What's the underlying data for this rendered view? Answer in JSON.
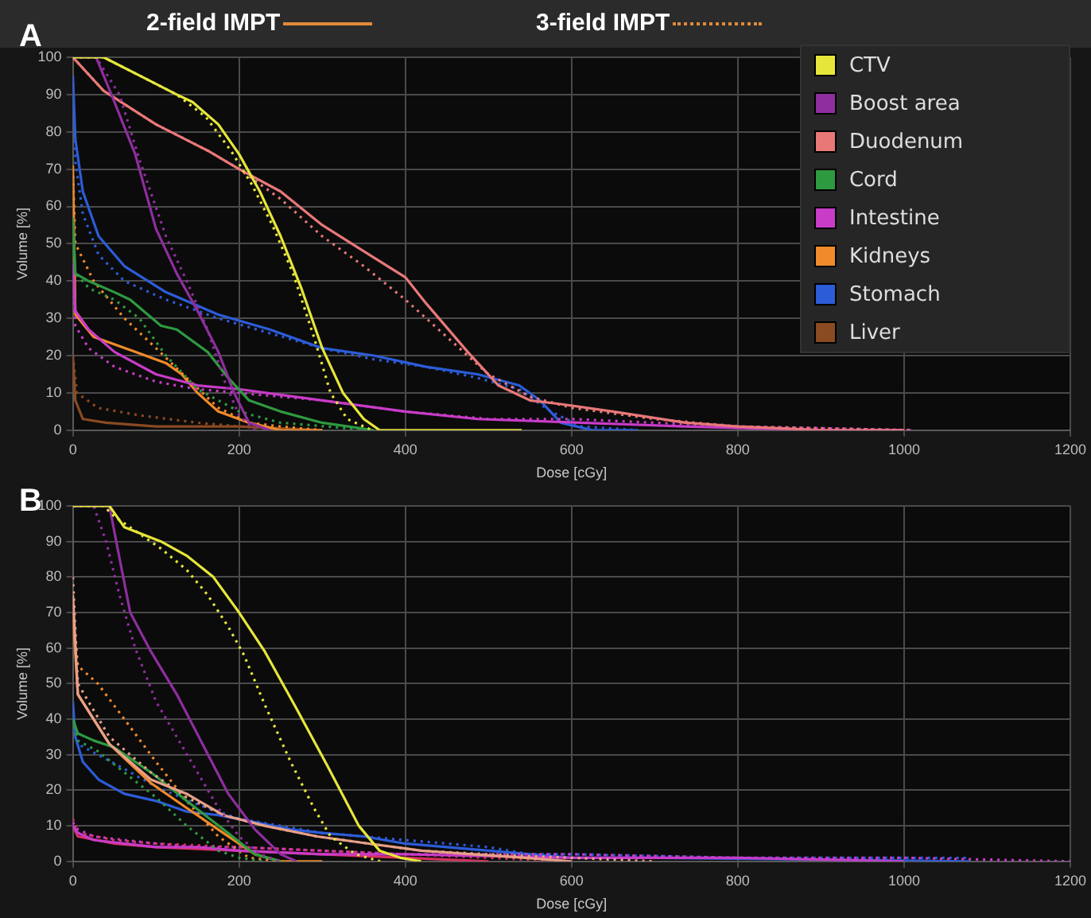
{
  "chart_data": [
    {
      "type": "line",
      "xlabel": "Dose [cGy]",
      "ylabel": "Volume [%]",
      "xlim": [
        0,
        1200
      ],
      "xticks": [
        0,
        200,
        400,
        600,
        800,
        1000,
        1200
      ],
      "ylim": [
        0,
        100
      ],
      "yticks": [
        0,
        10,
        20,
        30,
        40,
        50,
        60,
        70,
        80,
        90,
        100
      ],
      "grid": true,
      "legend": "top right",
      "annotations": [
        "A",
        "2-field IMPT",
        "3-field IMPT"
      ],
      "series": [
        {
          "name": "CTV",
          "color": "#e6e63a",
          "line_style": "solid",
          "x": [
            0,
            37,
            81,
            125,
            144,
            175,
            200,
            225,
            250,
            275,
            300,
            325,
            350,
            369,
            540
          ],
          "values": [
            100,
            100,
            95,
            90,
            88,
            82,
            74,
            64,
            52,
            38,
            22,
            10,
            3,
            0,
            0
          ]
        },
        {
          "color": "#e6e63a",
          "line_style": "dotted",
          "x": [
            0,
            37,
            81,
            125,
            160,
            190,
            215,
            240,
            265,
            290,
            310,
            330,
            360
          ],
          "values": [
            100,
            100,
            95,
            90,
            84,
            75,
            66,
            55,
            42,
            25,
            10,
            3,
            0
          ]
        },
        {
          "name": "Boost area",
          "color": "#8e2e9e",
          "line_style": "solid",
          "x": [
            0,
            28,
            50,
            75,
            100,
            125,
            150,
            175,
            194,
            212,
            237
          ],
          "values": [
            100,
            100,
            88,
            74,
            54,
            42,
            32,
            21,
            10,
            2,
            0
          ]
        },
        {
          "color": "#8e2e9e",
          "line_style": "dotted",
          "x": [
            0,
            28,
            56,
            81,
            112,
            137,
            162,
            181,
            200,
            219
          ],
          "values": [
            100,
            100,
            90,
            72,
            52,
            40,
            27,
            14,
            4,
            0
          ]
        },
        {
          "name": "Duodenum",
          "color": "#e87878",
          "line_style": "solid",
          "x": [
            0,
            37,
            100,
            162,
            200,
            250,
            300,
            350,
            400,
            425,
            475,
            512,
            550,
            587,
            650,
            737,
            800,
            900,
            1000
          ],
          "values": [
            100,
            91,
            82,
            75,
            70,
            64,
            55,
            48,
            41,
            34,
            21,
            12,
            8,
            7,
            5,
            2,
            1,
            0,
            0
          ]
        },
        {
          "color": "#e87878",
          "line_style": "dotted",
          "x": [
            0,
            37,
            100,
            162,
            200,
            250,
            300,
            350,
            400,
            450,
            500,
            550,
            600,
            700,
            800,
            1010
          ],
          "values": [
            100,
            91,
            82,
            75,
            70,
            62,
            52,
            44,
            35,
            25,
            15,
            9,
            6,
            3,
            1,
            0
          ]
        },
        {
          "name": "Cord",
          "color": "#2e9a40",
          "line_style": "solid",
          "x": [
            0,
            3,
            19,
            50,
            69,
            106,
            125,
            162,
            187,
            212,
            250,
            300,
            362
          ],
          "values": [
            57,
            42,
            40,
            37,
            35,
            28,
            27,
            21,
            14,
            8,
            5,
            2,
            0
          ]
        },
        {
          "color": "#2e9a40",
          "line_style": "dotted",
          "x": [
            0,
            3,
            20,
            50,
            80,
            112,
            150,
            200,
            250,
            360
          ],
          "values": [
            55,
            42,
            38,
            35,
            30,
            20,
            11,
            5,
            2,
            0
          ]
        },
        {
          "name": "Intestine",
          "color": "#c83cc8",
          "line_style": "solid",
          "x": [
            0,
            3,
            19,
            50,
            100,
            150,
            200,
            300,
            400,
            487,
            612,
            737,
            900,
            1000
          ],
          "values": [
            45,
            32,
            27,
            21,
            15,
            12,
            11,
            8,
            5,
            3,
            2,
            1,
            0,
            0
          ]
        },
        {
          "color": "#c83cc8",
          "line_style": "dotted",
          "x": [
            0,
            3,
            19,
            50,
            100,
            150,
            200,
            300,
            400,
            500,
            600,
            800,
            1010
          ],
          "values": [
            40,
            28,
            22,
            17,
            13,
            11,
            10,
            8,
            5,
            3,
            3,
            1,
            0
          ]
        },
        {
          "name": "Kidneys",
          "color": "#f08a2a",
          "line_style": "solid",
          "x": [
            0,
            3,
            25,
            75,
            112,
            131,
            150,
            175,
            212,
            250,
            300
          ],
          "values": [
            71,
            31,
            25,
            21,
            18,
            15,
            10,
            5,
            2,
            0,
            0
          ]
        },
        {
          "color": "#f08a2a",
          "line_style": "dotted",
          "x": [
            0,
            3,
            25,
            62,
            100,
            137,
            175,
            212,
            250,
            300
          ],
          "values": [
            70,
            50,
            40,
            30,
            22,
            14,
            6,
            2,
            1,
            0
          ]
        },
        {
          "name": "Stomach",
          "color": "#2c5cd8",
          "line_style": "solid",
          "x": [
            0,
            3,
            12,
            31,
            62,
            112,
            175,
            237,
            300,
            362,
            425,
            487,
            537,
            562,
            587,
            625,
            680
          ],
          "values": [
            95,
            78,
            64,
            52,
            44,
            37,
            31,
            27,
            22,
            20,
            17,
            15,
            12,
            8,
            2,
            0,
            0
          ]
        },
        {
          "color": "#2c5cd8",
          "line_style": "dotted",
          "x": [
            0,
            3,
            12,
            31,
            62,
            112,
            175,
            237,
            300,
            362,
            425,
            487,
            537,
            575,
            612,
            680
          ],
          "values": [
            95,
            72,
            58,
            47,
            40,
            35,
            30,
            26,
            22,
            19,
            17,
            14,
            11,
            5,
            1,
            0
          ]
        },
        {
          "name": "Liver",
          "color": "#8a4a22",
          "line_style": "solid",
          "x": [
            0,
            3,
            12,
            40,
            100,
            200,
            300
          ],
          "values": [
            20,
            8,
            3,
            2,
            1,
            1,
            0
          ]
        },
        {
          "color": "#8a4a22",
          "line_style": "dotted",
          "x": [
            0,
            5,
            30,
            80,
            150,
            200,
            260
          ],
          "values": [
            20,
            10,
            6,
            4,
            2,
            1,
            0
          ]
        }
      ]
    },
    {
      "type": "line",
      "xlabel": "Dose [cGy]",
      "ylabel": "Volume [%]",
      "xlim": [
        0,
        1200
      ],
      "xticks": [
        0,
        200,
        400,
        600,
        800,
        1000,
        1200
      ],
      "ylim": [
        0,
        100
      ],
      "yticks": [
        0,
        10,
        20,
        30,
        40,
        50,
        60,
        70,
        80,
        90,
        100
      ],
      "grid": true,
      "annotations": [
        "B"
      ],
      "series": [
        {
          "color": "#e6e63a",
          "line_style": "solid",
          "x": [
            0,
            44,
            62,
            106,
            137,
            169,
            200,
            231,
            269,
            306,
            344,
            369,
            394,
            419
          ],
          "values": [
            100,
            100,
            94,
            90,
            86,
            80,
            70,
            59,
            43,
            27,
            10,
            3,
            1,
            0
          ]
        },
        {
          "color": "#e6e63a",
          "line_style": "dotted",
          "x": [
            0,
            37,
            50,
            75,
            106,
            137,
            162,
            187,
            206,
            231,
            262,
            290,
            310,
            340,
            370
          ],
          "values": [
            100,
            100,
            97,
            93,
            88,
            82,
            75,
            66,
            58,
            44,
            28,
            15,
            7,
            2,
            0
          ]
        },
        {
          "color": "#8e2e9e",
          "line_style": "solid",
          "x": [
            0,
            44,
            53,
            69,
            94,
            125,
            156,
            187,
            219,
            250,
            269
          ],
          "values": [
            100,
            100,
            89,
            70,
            59,
            47,
            33,
            19,
            9,
            2,
            0
          ]
        },
        {
          "color": "#8e2e9e",
          "line_style": "dotted",
          "x": [
            0,
            25,
            40,
            56,
            75,
            100,
            125,
            150,
            175,
            200,
            225,
            250
          ],
          "values": [
            100,
            100,
            90,
            75,
            60,
            45,
            35,
            25,
            15,
            7,
            2,
            0
          ]
        },
        {
          "color": "#e8a088",
          "line_style": "solid",
          "x": [
            0,
            6,
            44,
            94,
            137,
            181,
            231,
            294,
            356,
            419,
            481,
            544,
            600
          ],
          "values": [
            75,
            47,
            33,
            23,
            19,
            13,
            10,
            7,
            5,
            3,
            2,
            1,
            0
          ]
        },
        {
          "color": "#e8a088",
          "line_style": "dotted",
          "x": [
            0,
            6,
            44,
            94,
            137,
            181,
            231,
            294,
            356,
            419,
            500,
            600,
            700
          ],
          "values": [
            80,
            50,
            35,
            25,
            18,
            13,
            10,
            7,
            5,
            3,
            2,
            1,
            0
          ]
        },
        {
          "color": "#2e9a40",
          "line_style": "solid",
          "x": [
            0,
            6,
            25,
            50,
            94,
            137,
            181,
            219,
            250
          ],
          "values": [
            40,
            36,
            34,
            32,
            25,
            17,
            9,
            2,
            0
          ]
        },
        {
          "color": "#2e9a40",
          "line_style": "dotted",
          "x": [
            0,
            6,
            30,
            62,
            100,
            137,
            175,
            200,
            230
          ],
          "values": [
            40,
            34,
            31,
            25,
            18,
            10,
            3,
            1,
            0
          ]
        },
        {
          "color": "#c83cc8",
          "line_style": "solid",
          "x": [
            0,
            6,
            25,
            62,
            100,
            150,
            200,
            300,
            400,
            600,
            800,
            1000
          ],
          "values": [
            10,
            8,
            6,
            5,
            4,
            4,
            3,
            2,
            2,
            1,
            1,
            0
          ]
        },
        {
          "color": "#c83cc8",
          "line_style": "dotted",
          "x": [
            0,
            6,
            25,
            62,
            100,
            150,
            200,
            300,
            400,
            600,
            800,
            1000,
            1200
          ],
          "values": [
            11,
            9,
            7,
            6,
            5,
            4,
            4,
            3,
            2,
            2,
            1,
            1,
            0
          ]
        },
        {
          "color": "#f08a2a",
          "line_style": "solid",
          "x": [
            0,
            6,
            44,
            94,
            137,
            181,
            219,
            250,
            300
          ],
          "values": [
            70,
            47,
            33,
            22,
            15,
            8,
            2,
            0,
            0
          ]
        },
        {
          "color": "#f08a2a",
          "line_style": "dotted",
          "x": [
            0,
            6,
            30,
            62,
            100,
            137,
            175,
            212,
            250
          ],
          "values": [
            70,
            55,
            50,
            40,
            28,
            17,
            7,
            1,
            0
          ]
        },
        {
          "color": "#2c5cd8",
          "line_style": "solid",
          "x": [
            0,
            3,
            12,
            31,
            62,
            100,
            137,
            175,
            219,
            262,
            300,
            350,
            400,
            450,
            500,
            550,
            600,
            700,
            1080
          ],
          "values": [
            45,
            35,
            28,
            23,
            19,
            17,
            14,
            13,
            11,
            9,
            8,
            7,
            5,
            4,
            3,
            2,
            1,
            1,
            0
          ]
        },
        {
          "color": "#2c5cd8",
          "line_style": "dotted",
          "x": [
            0,
            6,
            30,
            62,
            100,
            150,
            200,
            250,
            300,
            350,
            400,
            450,
            500,
            550,
            600,
            800,
            1080
          ],
          "values": [
            40,
            33,
            30,
            26,
            21,
            16,
            12,
            10,
            8,
            7,
            6,
            5,
            4,
            2,
            2,
            1,
            1
          ]
        },
        {
          "color": "#d83060",
          "line_style": "solid",
          "x": [
            0,
            6,
            50,
            100,
            200,
            300,
            400,
            500
          ],
          "values": [
            10,
            7,
            5,
            4,
            3,
            2,
            1,
            0
          ]
        },
        {
          "color": "#d83060",
          "line_style": "dotted",
          "x": [
            0,
            6,
            50,
            100,
            200,
            300,
            400,
            500,
            600
          ],
          "values": [
            12,
            8,
            6,
            5,
            4,
            3,
            2,
            1,
            0
          ]
        }
      ]
    }
  ]
}
